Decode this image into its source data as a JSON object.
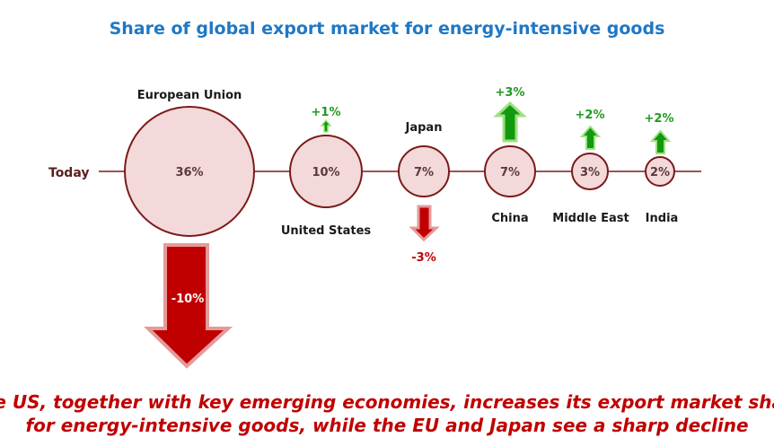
{
  "title": "Share of global export market for energy-intensive goods",
  "row_label": "Today",
  "regions": [
    {
      "name": "European Union",
      "share": "36%",
      "change": "-10%",
      "direction": "down"
    },
    {
      "name": "United States",
      "share": "10%",
      "change": "+1%",
      "direction": "up"
    },
    {
      "name": "Japan",
      "share": "7%",
      "change": "-3%",
      "direction": "down"
    },
    {
      "name": "China",
      "share": "7%",
      "change": "+3%",
      "direction": "up"
    },
    {
      "name": "Middle East",
      "share": "3%",
      "change": "+2%",
      "direction": "up"
    },
    {
      "name": "India",
      "share": "2%",
      "change": "+2%",
      "direction": "up"
    }
  ],
  "footnote": {
    "line1": "The US, together with key emerging economies, increases its export market share",
    "line2": "for energy-intensive goods, while the EU and Japan see a sharp decline"
  },
  "colors": {
    "title": "#1f78c4",
    "increase": "#1f9a1f",
    "decrease": "#c00000",
    "circle_fill": "#f3d9d9",
    "circle_stroke": "#7b1a1a"
  }
}
